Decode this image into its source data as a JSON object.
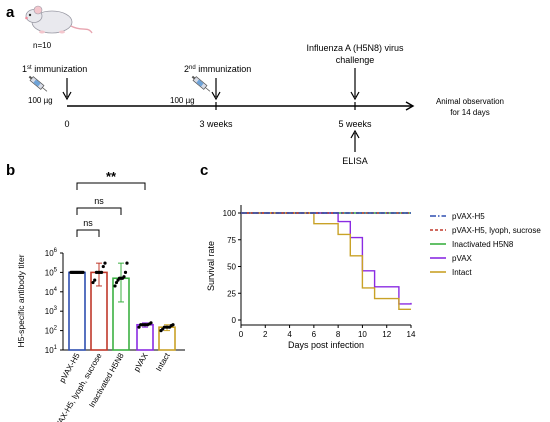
{
  "panel_a": {
    "letter": "a",
    "n_label": "n=10",
    "dose_1": "100 µg",
    "dose_2": "100 µg",
    "immunization_1": {
      "ordinal": "1",
      "sup": "st",
      "text": " immunization"
    },
    "immunization_2": {
      "ordinal": "2",
      "sup": "nd",
      "text": " immunization"
    },
    "challenge_line1": "Influenza A (H5N8) virus",
    "challenge_line2": "challenge",
    "observation_line1": "Animal observation",
    "observation_line2": "for 14 days",
    "ticks": [
      "0",
      "3 weeks",
      "5 weeks"
    ],
    "elisa": "ELISA"
  },
  "panel_b": {
    "letter": "b",
    "comparisons": [
      {
        "label": "**"
      },
      {
        "label": "ns"
      },
      {
        "label": "ns"
      }
    ]
  },
  "panel_c": {
    "letter": "c"
  },
  "chart_data": [
    {
      "type": "bar",
      "ylabel": "H5-specific antibody titer",
      "yscale": "log",
      "ylim": [
        10,
        1000000
      ],
      "ytick_labels": [
        {
          "base": "10",
          "exp": "1",
          "value": 10
        },
        {
          "base": "10",
          "exp": "2",
          "value": 100
        },
        {
          "base": "10",
          "exp": "3",
          "value": 1000
        },
        {
          "base": "10",
          "exp": "4",
          "value": 10000
        },
        {
          "base": "10",
          "exp": "5",
          "value": 100000
        },
        {
          "base": "10",
          "exp": "6",
          "value": 1000000
        }
      ],
      "categories": [
        "pVAX-H5",
        "pVAX-H5,  lyoph, sucrose",
        "Inactivated H5N8",
        "pVAX",
        "Intact"
      ],
      "colors": [
        "#2f4fb0",
        "#c0392b",
        "#3cb043",
        "#8a2be2",
        "#c9a227"
      ],
      "values": [
        100000,
        100000,
        50000,
        200,
        150
      ],
      "error_high": [
        100000,
        300000,
        300000,
        250,
        200
      ],
      "error_low": [
        100000,
        20000,
        3000,
        150,
        100
      ],
      "points": [
        [
          100000,
          100000,
          100000,
          100000,
          100000,
          100000,
          100000,
          100000,
          100000,
          100000
        ],
        [
          30000,
          40000,
          100000,
          100000,
          100000,
          100000,
          200000,
          300000
        ],
        [
          20000,
          30000,
          40000,
          50000,
          50000,
          50000,
          60000,
          100000,
          300000
        ],
        [
          150,
          200,
          200,
          200,
          200,
          200,
          220,
          250
        ],
        [
          100,
          120,
          150,
          150,
          150,
          150,
          180,
          200
        ]
      ]
    },
    {
      "type": "line",
      "xlabel": "Days post infection",
      "ylabel": "Survival rate",
      "xlim": [
        0,
        14
      ],
      "ylim": [
        0,
        100
      ],
      "xticks": [
        0,
        2,
        4,
        6,
        8,
        10,
        12,
        14
      ],
      "yticks": [
        0,
        25,
        50,
        75,
        100
      ],
      "series": [
        {
          "name": "pVAX-H5",
          "color": "#2f4fb0",
          "dash": "6,2,1.5,2",
          "x": [
            0,
            14
          ],
          "y": [
            100,
            100
          ]
        },
        {
          "name": "pVAX-H5,  lyoph, sucrose",
          "color": "#c0392b",
          "dash": "3,2",
          "x": [
            0,
            14
          ],
          "y": [
            100,
            100
          ]
        },
        {
          "name": "Inactivated H5N8",
          "color": "#3cb043",
          "dash": "",
          "x": [
            0,
            14
          ],
          "y": [
            100,
            100
          ]
        },
        {
          "name": "pVAX",
          "color": "#8a2be2",
          "dash": "",
          "x": [
            0,
            8,
            8,
            9,
            9,
            10,
            10,
            11,
            11,
            13,
            13,
            14,
            14
          ],
          "y": [
            100,
            100,
            92,
            92,
            77,
            77,
            46,
            46,
            31,
            31,
            15,
            15,
            16
          ]
        },
        {
          "name": "Intact",
          "color": "#c9a227",
          "dash": "",
          "x": [
            0,
            6,
            6,
            8,
            8,
            9,
            9,
            10,
            10,
            11,
            11,
            13,
            13,
            14
          ],
          "y": [
            100,
            100,
            90,
            90,
            80,
            80,
            60,
            60,
            30,
            30,
            20,
            20,
            10,
            10
          ]
        }
      ]
    }
  ]
}
